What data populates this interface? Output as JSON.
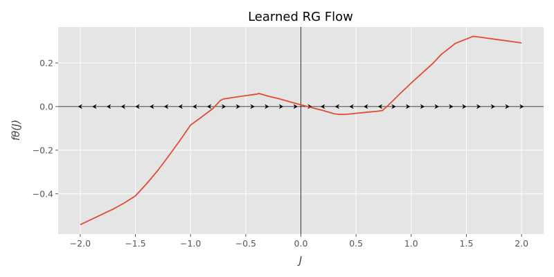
{
  "chart_data": {
    "type": "line",
    "title": "Learned RG Flow",
    "xlabel": "J",
    "ylabel": "fθ(J)",
    "xlim": [
      -2.2,
      2.2
    ],
    "ylim": [
      -0.585,
      0.365
    ],
    "xticks": [
      -2.0,
      -1.5,
      -1.0,
      -0.5,
      0.0,
      0.5,
      1.0,
      1.5,
      2.0
    ],
    "xtick_labels": [
      "−2.0",
      "−1.5",
      "−1.0",
      "−0.5",
      "0.0",
      "0.5",
      "1.0",
      "1.5",
      "2.0"
    ],
    "yticks": [
      -0.4,
      -0.2,
      0.0,
      0.2
    ],
    "ytick_labels": [
      "−0.4",
      "−0.2",
      "0.0",
      "0.2"
    ],
    "grid": true,
    "style": "ggplot",
    "colors": {
      "line": "#e24a33",
      "background": "#e5e5e5",
      "grid": "#ffffff",
      "axis_zero": "#000000",
      "arrows": "#000000"
    },
    "series": [
      {
        "x": [
          -2.0,
          -1.9,
          -1.8,
          -1.7,
          -1.6,
          -1.5,
          -1.4,
          -1.3,
          -1.2,
          -1.1,
          -1.0,
          -0.9,
          -0.8,
          -0.73,
          -0.7,
          -0.6,
          -0.5,
          -0.4,
          -0.38,
          -0.3,
          -0.2,
          -0.1,
          0.0,
          0.1,
          0.2,
          0.3,
          0.35,
          0.4,
          0.5,
          0.6,
          0.7,
          0.74,
          0.8,
          0.9,
          1.0,
          1.1,
          1.2,
          1.27,
          1.3,
          1.4,
          1.5,
          1.56,
          1.6,
          1.7,
          1.8,
          1.9,
          2.0
        ],
        "y": [
          -0.542,
          -0.518,
          -0.494,
          -0.47,
          -0.442,
          -0.41,
          -0.355,
          -0.295,
          -0.228,
          -0.158,
          -0.085,
          -0.048,
          -0.01,
          0.028,
          0.035,
          0.043,
          0.05,
          0.057,
          0.06,
          0.048,
          0.036,
          0.022,
          0.008,
          -0.005,
          -0.018,
          -0.033,
          -0.036,
          -0.036,
          -0.031,
          -0.026,
          -0.021,
          -0.018,
          0.01,
          0.06,
          0.108,
          0.154,
          0.2,
          0.238,
          0.25,
          0.29,
          0.31,
          0.322,
          0.32,
          0.313,
          0.306,
          0.299,
          0.292
        ]
      }
    ],
    "flow_arrows": {
      "x": [
        -2.0,
        -1.87,
        -1.74,
        -1.61,
        -1.48,
        -1.35,
        -1.22,
        -1.09,
        -0.96,
        -0.83,
        -0.7,
        -0.57,
        -0.44,
        -0.31,
        -0.18,
        -0.05,
        0.08,
        0.2,
        0.33,
        0.46,
        0.59,
        0.72,
        0.84,
        0.97,
        1.1,
        1.23,
        1.36,
        1.48,
        1.61,
        1.74,
        1.87,
        2.0
      ],
      "direction": [
        -1,
        -1,
        -1,
        -1,
        -1,
        -1,
        -1,
        -1,
        -1,
        -1,
        1,
        1,
        1,
        1,
        1,
        1,
        1,
        -1,
        -1,
        -1,
        -1,
        -1,
        1,
        1,
        1,
        1,
        1,
        1,
        1,
        1,
        1,
        1
      ]
    }
  }
}
